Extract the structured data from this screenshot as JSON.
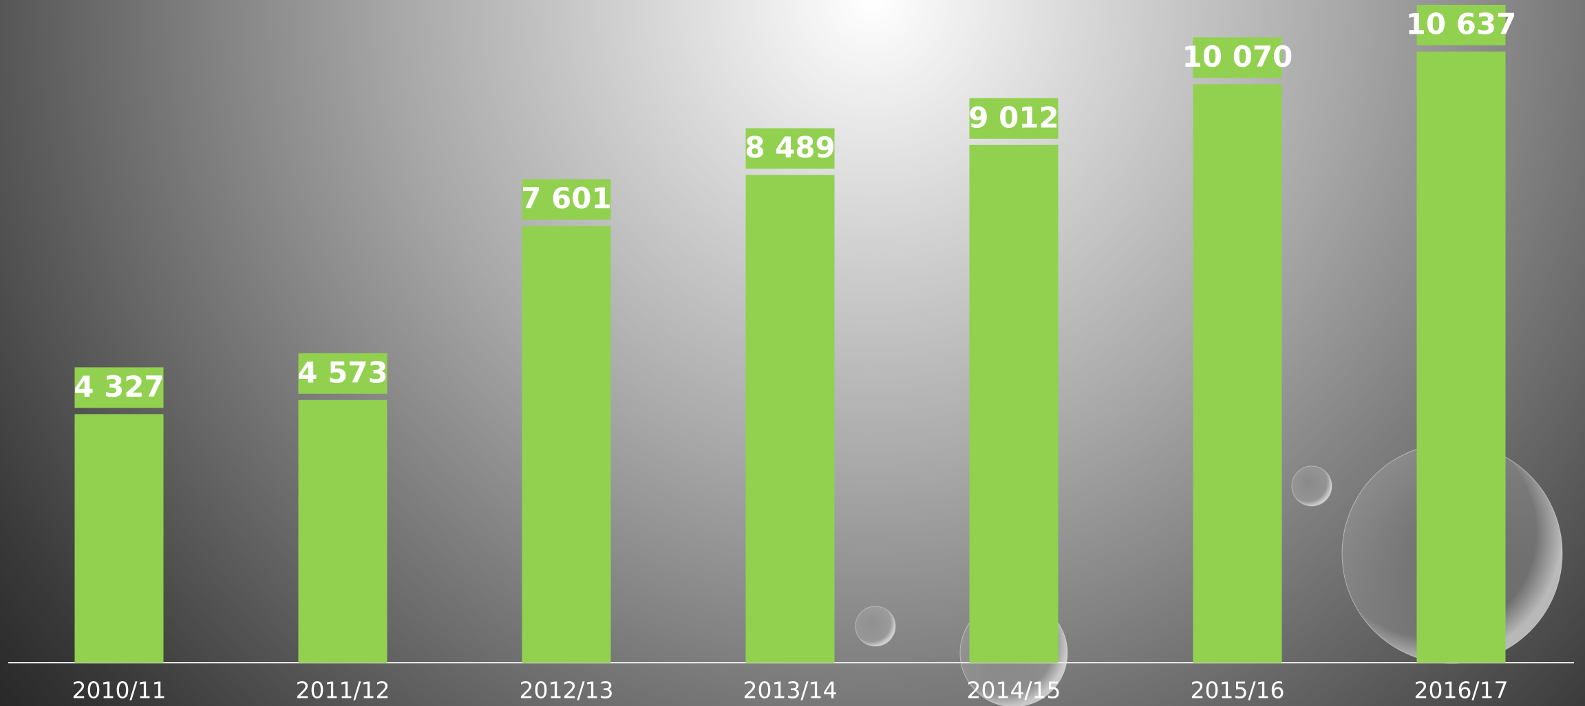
{
  "chart_data": {
    "type": "bar",
    "categories": [
      "2010/11",
      "2011/12",
      "2012/13",
      "2013/14",
      "2014/15",
      "2015/16",
      "2016/17"
    ],
    "values": [
      4327,
      4573,
      7601,
      8489,
      9012,
      10070,
      10637
    ],
    "value_labels": [
      "4 327",
      "4 573",
      "7 601",
      "8 489",
      "9 012",
      "10 070",
      "10 637"
    ],
    "color": "#92d050"
  }
}
